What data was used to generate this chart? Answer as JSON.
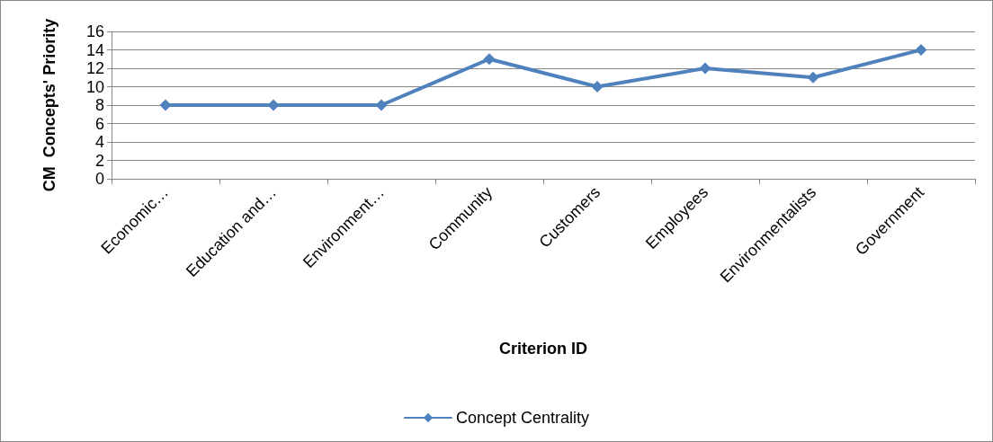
{
  "chart_data": {
    "type": "line",
    "xlabel": "Criterion ID",
    "ylabel": "CM  Concepts' Priority",
    "categories": [
      "Economic…",
      "Education and…",
      "Environment…",
      "Community",
      "Customers",
      "Employees",
      "Environmentalists",
      "Government"
    ],
    "series": [
      {
        "name": "Concept Centrality",
        "color": "#4f81bd",
        "values": [
          8,
          8,
          8,
          13,
          10,
          12,
          11,
          14
        ]
      }
    ],
    "ylim": [
      0,
      16
    ],
    "yticks": [
      0,
      2,
      4,
      6,
      8,
      10,
      12,
      14,
      16
    ],
    "grid": "y",
    "legend": "bottom",
    "marker": "diamond",
    "line_style": "solid"
  }
}
